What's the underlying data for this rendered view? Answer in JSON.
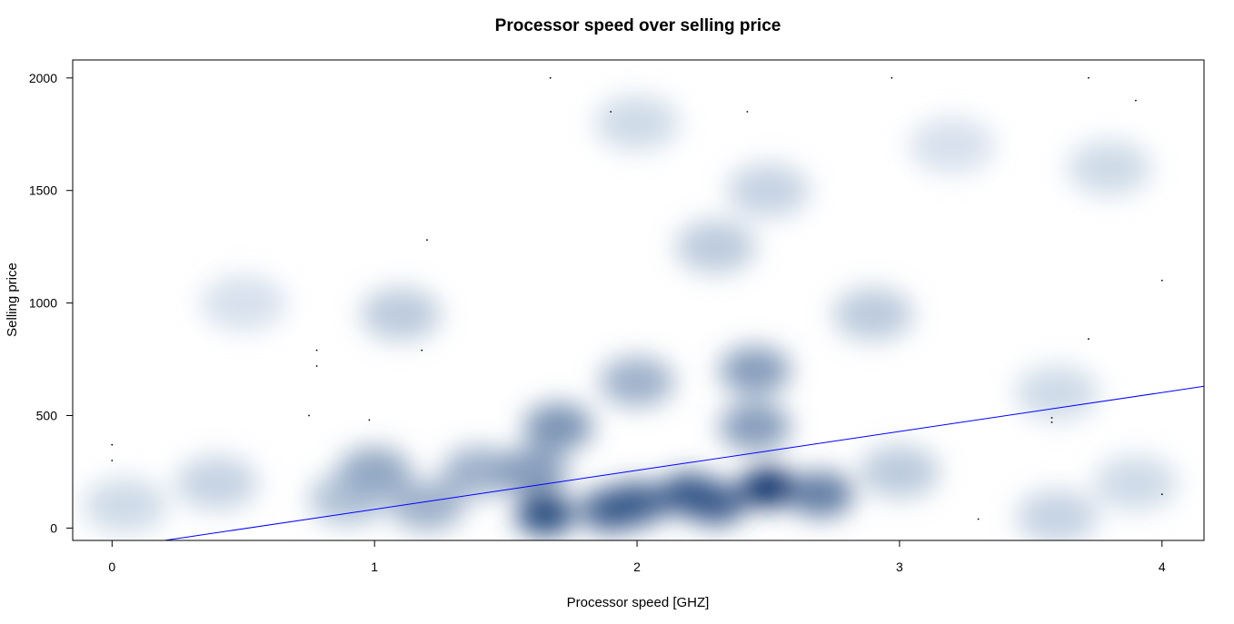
{
  "chart_data": {
    "type": "scatter",
    "title": "Processor speed over selling price",
    "xlabel": "Processor speed [GHZ]",
    "ylabel": "Selling price",
    "xlim": [
      -0.15,
      4.16
    ],
    "ylim": [
      -55,
      2080
    ],
    "x_ticks": [
      0,
      1,
      2,
      3,
      4
    ],
    "y_ticks": [
      0,
      500,
      1000,
      1500,
      2000
    ],
    "x_tick_labels": [
      "0",
      "1",
      "2",
      "3",
      "4"
    ],
    "y_tick_labels": [
      "0",
      "500",
      "1000",
      "1500",
      "2000"
    ],
    "style": "smoothed density scatter",
    "colors": {
      "density_high": "#08306b",
      "density_low": "#deebf7",
      "regression_line": "#0000ff",
      "frame": "#000000"
    },
    "regression_line": {
      "x": [
        0.2,
        4.16
      ],
      "y": [
        -55,
        630
      ]
    },
    "density_blobs": [
      {
        "x": 1.65,
        "y": 60,
        "w": 0.9
      },
      {
        "x": 2.5,
        "y": 180,
        "w": 1.0
      },
      {
        "x": 2.2,
        "y": 150,
        "w": 0.85
      },
      {
        "x": 1.9,
        "y": 80,
        "w": 0.8
      },
      {
        "x": 2.0,
        "y": 110,
        "w": 0.8
      },
      {
        "x": 2.3,
        "y": 110,
        "w": 0.8
      },
      {
        "x": 2.7,
        "y": 150,
        "w": 0.7
      },
      {
        "x": 1.6,
        "y": 250,
        "w": 0.55
      },
      {
        "x": 1.7,
        "y": 450,
        "w": 0.6
      },
      {
        "x": 2.45,
        "y": 700,
        "w": 0.55
      },
      {
        "x": 2.45,
        "y": 450,
        "w": 0.55
      },
      {
        "x": 2.0,
        "y": 650,
        "w": 0.45
      },
      {
        "x": 1.0,
        "y": 250,
        "w": 0.5
      },
      {
        "x": 1.4,
        "y": 250,
        "w": 0.45
      },
      {
        "x": 1.2,
        "y": 100,
        "w": 0.45
      },
      {
        "x": 0.9,
        "y": 130,
        "w": 0.35
      },
      {
        "x": 3.0,
        "y": 250,
        "w": 0.3
      },
      {
        "x": 2.9,
        "y": 950,
        "w": 0.3
      },
      {
        "x": 2.3,
        "y": 1250,
        "w": 0.3
      },
      {
        "x": 1.1,
        "y": 950,
        "w": 0.3
      },
      {
        "x": 0.4,
        "y": 200,
        "w": 0.25
      },
      {
        "x": 0.05,
        "y": 100,
        "w": 0.2
      },
      {
        "x": 3.6,
        "y": 50,
        "w": 0.25
      },
      {
        "x": 3.9,
        "y": 200,
        "w": 0.2
      },
      {
        "x": 3.6,
        "y": 600,
        "w": 0.2
      },
      {
        "x": 3.8,
        "y": 1600,
        "w": 0.2
      },
      {
        "x": 2.5,
        "y": 1500,
        "w": 0.25
      },
      {
        "x": 2.0,
        "y": 1800,
        "w": 0.2
      },
      {
        "x": 0.5,
        "y": 1000,
        "w": 0.15
      },
      {
        "x": 3.2,
        "y": 1700,
        "w": 0.15
      }
    ],
    "outlier_points": [
      {
        "x": 1.67,
        "y": 2000
      },
      {
        "x": 1.9,
        "y": 1850
      },
      {
        "x": 2.42,
        "y": 1850
      },
      {
        "x": 2.97,
        "y": 2000
      },
      {
        "x": 3.72,
        "y": 2000
      },
      {
        "x": 3.9,
        "y": 1900
      },
      {
        "x": 1.2,
        "y": 1280
      },
      {
        "x": 1.18,
        "y": 790
      },
      {
        "x": 0.78,
        "y": 790
      },
      {
        "x": 0.78,
        "y": 720
      },
      {
        "x": 0.75,
        "y": 500
      },
      {
        "x": 0.0,
        "y": 370
      },
      {
        "x": 0.0,
        "y": 300
      },
      {
        "x": 0.98,
        "y": 480
      },
      {
        "x": 3.58,
        "y": 490
      },
      {
        "x": 3.58,
        "y": 470
      },
      {
        "x": 3.3,
        "y": 40
      },
      {
        "x": 3.72,
        "y": 840
      },
      {
        "x": 4.0,
        "y": 1100
      },
      {
        "x": 4.0,
        "y": 150
      }
    ]
  }
}
